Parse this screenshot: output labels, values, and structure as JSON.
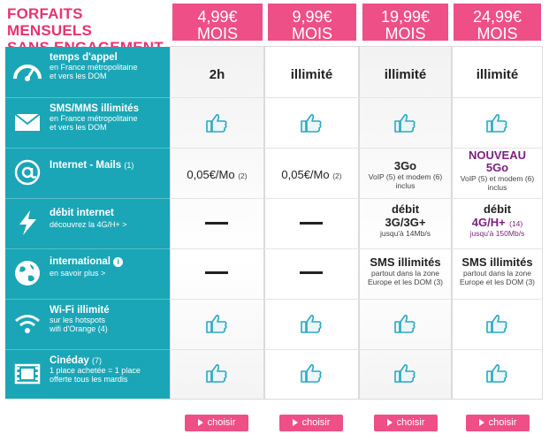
{
  "title": {
    "line1": "FORFAITS MENSUELS",
    "line2": "SANS ENGAGEMENT"
  },
  "plans": [
    {
      "price": "4,99€",
      "unit": "MOIS"
    },
    {
      "price": "9,99€",
      "unit": "MOIS"
    },
    {
      "price": "19,99€",
      "unit": "MOIS"
    },
    {
      "price": "24,99€",
      "unit": "MOIS"
    }
  ],
  "features": [
    {
      "icon": "speedometer-icon",
      "main": "temps d'appel",
      "sub1": "en France métropolitaine",
      "sub2": "et vers les DOM"
    },
    {
      "icon": "envelope-icon",
      "main": "SMS/MMS illimités",
      "sub1": "en France métropolitaine",
      "sub2": "et vers les DOM"
    },
    {
      "icon": "at-sign-icon",
      "main": "Internet - Mails",
      "note": "(1)"
    },
    {
      "icon": "lightning-icon",
      "main": "débit internet",
      "sub1": "découvrez la 4G/H+ >"
    },
    {
      "icon": "globe-icon",
      "main": "international",
      "info": "i",
      "sub1": "en savoir plus >"
    },
    {
      "icon": "wifi-icon",
      "main": "Wi-Fi illimité",
      "sub1": "sur les hotspots",
      "sub2": "wifi d'Orange (4)"
    },
    {
      "icon": "film-icon",
      "main": "Cinéday",
      "note": "(7)",
      "sub1": "1 place achetée = 1 place",
      "sub2": "offerte tous les mardis"
    }
  ],
  "cells": {
    "calls": [
      "2h",
      "illimité",
      "illimité",
      "illimité"
    ],
    "internet_p1": {
      "value": "0,05€/Mo",
      "note": "(2)"
    },
    "internet_p2": {
      "value": "0,05€/Mo",
      "note": "(2)"
    },
    "internet_p3": {
      "value": "3Go",
      "sub1": "VoIP (5) et modem (6)",
      "sub2": "inclus"
    },
    "internet_p4": {
      "badge": "NOUVEAU",
      "value": "5Go",
      "sub1": "VoIP (5) et modem (6)",
      "sub2": "inclus"
    },
    "speed_p3": {
      "label": "débit",
      "value": "3G/3G+",
      "sub": "jusqu'à 14Mb/s"
    },
    "speed_p4": {
      "label": "débit",
      "value": "4G/H+",
      "note": "(14)",
      "sub": "jusqu'à 150Mb/s"
    },
    "intl_p3": {
      "value": "SMS illimités",
      "sub1": "partout dans la zone",
      "sub2": "Europe et les DOM (3)"
    },
    "intl_p4": {
      "value": "SMS illimités",
      "sub1": "partout dans la zone",
      "sub2": "Europe et les DOM (3)"
    }
  },
  "cta": {
    "label": "choisir"
  },
  "colors": {
    "pink": "#ee4f86",
    "title_pink": "#e8336e",
    "teal": "#1aa6b6",
    "thumb": "#2aa9c0"
  }
}
